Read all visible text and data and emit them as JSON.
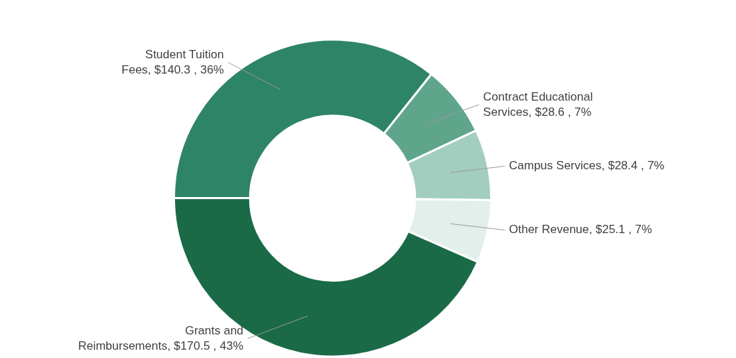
{
  "chart_data": {
    "type": "donut",
    "categories": [
      "Student Tuition Fees",
      "Contract Educational Services",
      "Campus Services",
      "Other Revenue",
      "Grants and Reimbursements"
    ],
    "values": [
      140.3,
      28.6,
      28.4,
      25.1,
      170.5
    ],
    "value_labels": [
      "$140.3 , 36%",
      "$28.6 , 7%",
      "$28.4 , 7%",
      "$25.1 , 7%",
      "$170.5 , 43%"
    ],
    "colors": [
      "#2e8466",
      "#5fa58c",
      "#a3cdbf",
      "#e2efea",
      "#1a6a48"
    ],
    "legend": false
  }
}
